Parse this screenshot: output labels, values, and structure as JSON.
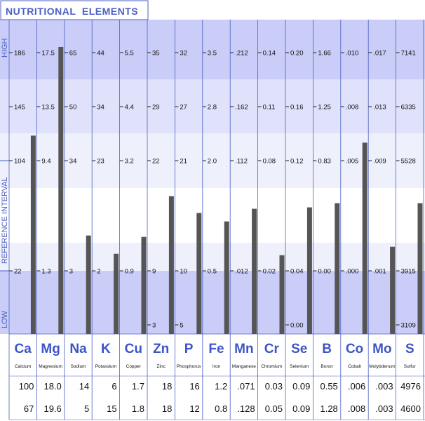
{
  "chart_data": {
    "type": "bar",
    "title": "NUTRITIONAL  ELEMENTS",
    "side_labels": {
      "high": "HIGH",
      "reference": "REFERENCE INTERVAL",
      "low": "LOW"
    },
    "colors": {
      "band_dark": "#c9cdf7",
      "band_mid": "#dfe2fa",
      "band_light": "#eef0fc",
      "band_white": "#ffffff",
      "bar": "#555555",
      "accent": "#4b5fc4",
      "symbol": "#3c55c8"
    },
    "elements": [
      {
        "symbol": "Ca",
        "name": "Calcium",
        "ticks": [
          "186",
          "145",
          "104",
          "22"
        ],
        "values": [
          "100",
          "67"
        ],
        "bar_level": 0.705
      },
      {
        "symbol": "Mg",
        "name": "Magnesium",
        "ticks": [
          "17.5",
          "13.5",
          "9.4",
          "1.3"
        ],
        "values": [
          "18.0",
          "19.6"
        ],
        "bar_level": 1.02
      },
      {
        "symbol": "Na",
        "name": "Sodium",
        "ticks": [
          "65",
          "50",
          "34",
          "3"
        ],
        "values": [
          "14",
          "5"
        ],
        "bar_level": 0.35
      },
      {
        "symbol": "K",
        "name": "Potassium",
        "ticks": [
          "44",
          "34",
          "23",
          "2"
        ],
        "values": [
          "6",
          "15"
        ],
        "bar_level": 0.285
      },
      {
        "symbol": "Cu",
        "name": "Copper",
        "ticks": [
          "5.5",
          "4.4",
          "3.2",
          "0.9"
        ],
        "values": [
          "1.7",
          "1.8"
        ],
        "bar_level": 0.345
      },
      {
        "symbol": "Zn",
        "name": "Zinc",
        "ticks": [
          "35",
          "29",
          "22",
          "9",
          "3"
        ],
        "values": [
          "18",
          "18"
        ],
        "bar_level": 0.49
      },
      {
        "symbol": "P",
        "name": "Phosphorus",
        "ticks": [
          "32",
          "27",
          "21",
          "10",
          "5"
        ],
        "values": [
          "16",
          "12"
        ],
        "bar_level": 0.43
      },
      {
        "symbol": "Fe",
        "name": "Iron",
        "ticks": [
          "3.5",
          "2.8",
          "2.0",
          "0.5"
        ],
        "values": [
          "1.2",
          "0.8"
        ],
        "bar_level": 0.4
      },
      {
        "symbol": "Mn",
        "name": "Manganese",
        "ticks": [
          ".212",
          ".162",
          ".112",
          ".012"
        ],
        "values": [
          ".071",
          ".128"
        ],
        "bar_level": 0.445
      },
      {
        "symbol": "Cr",
        "name": "Chromium",
        "ticks": [
          "0.14",
          "0.11",
          "0.08",
          "0.02"
        ],
        "values": [
          "0.03",
          "0.05"
        ],
        "bar_level": 0.28
      },
      {
        "symbol": "Se",
        "name": "Selenium",
        "ticks": [
          "0.20",
          "0.16",
          "0.12",
          "0.04",
          "0.00"
        ],
        "values": [
          "0.09",
          "0.09"
        ],
        "bar_level": 0.45
      },
      {
        "symbol": "B",
        "name": "Boron",
        "ticks": [
          "1.66",
          "1.25",
          "0.83",
          "0.00"
        ],
        "values": [
          "0.55",
          "1.28"
        ],
        "bar_level": 0.465
      },
      {
        "symbol": "Co",
        "name": "Cobalt",
        "ticks": [
          ".010",
          ".008",
          ".005",
          ".000"
        ],
        "values": [
          ".006",
          ".008"
        ],
        "bar_level": 0.68
      },
      {
        "symbol": "Mo",
        "name": "Molybdenum",
        "ticks": [
          ".017",
          ".013",
          ".009",
          ".001"
        ],
        "values": [
          ".003",
          ".003"
        ],
        "bar_level": 0.31
      },
      {
        "symbol": "S",
        "name": "Sulfur",
        "ticks": [
          "7141",
          "6335",
          "5528",
          "3915",
          "3109"
        ],
        "values": [
          "4976",
          "4600"
        ],
        "bar_level": 0.465
      }
    ]
  }
}
